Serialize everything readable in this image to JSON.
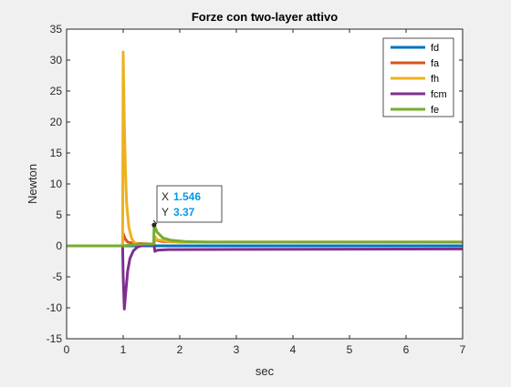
{
  "chart_data": {
    "type": "line",
    "title": "Forze con two-layer attivo",
    "xlabel": "sec",
    "ylabel": "Newton",
    "xlim": [
      0,
      7
    ],
    "ylim": [
      -15,
      35
    ],
    "x_ticks": [
      0,
      1,
      2,
      3,
      4,
      5,
      6,
      7
    ],
    "y_ticks": [
      -15,
      -10,
      -5,
      0,
      5,
      10,
      15,
      20,
      25,
      30,
      35
    ],
    "grid": false,
    "legend_position": "top-right",
    "series": [
      {
        "name": "fd",
        "color": "#0072bd",
        "points": [
          [
            0,
            0
          ],
          [
            7,
            0
          ]
        ]
      },
      {
        "name": "fa",
        "color": "#d95319",
        "points": [
          [
            0,
            0
          ],
          [
            0.99,
            0
          ],
          [
            1.0,
            2.0
          ],
          [
            1.03,
            1.2
          ],
          [
            1.08,
            0.6
          ],
          [
            1.2,
            0.4
          ],
          [
            1.5,
            0.3
          ],
          [
            1.546,
            0.3
          ],
          [
            1.56,
            1.2
          ],
          [
            1.6,
            0.9
          ],
          [
            1.7,
            0.7
          ],
          [
            2.0,
            0.6
          ],
          [
            3.0,
            0.6
          ],
          [
            7,
            0.6
          ]
        ]
      },
      {
        "name": "fh",
        "color": "#edb120",
        "points": [
          [
            0,
            0
          ],
          [
            0.99,
            0
          ],
          [
            1.0,
            31.3
          ],
          [
            1.02,
            20.0
          ],
          [
            1.04,
            12.0
          ],
          [
            1.06,
            7.0
          ],
          [
            1.1,
            3.0
          ],
          [
            1.15,
            1.2
          ],
          [
            1.2,
            0.5
          ],
          [
            1.3,
            0.2
          ],
          [
            1.546,
            0.2
          ],
          [
            1.56,
            1.5
          ],
          [
            1.6,
            1.0
          ],
          [
            1.8,
            0.7
          ],
          [
            2.2,
            0.6
          ],
          [
            7,
            0.6
          ]
        ]
      },
      {
        "name": "fcm",
        "color": "#7e2f8e",
        "points": [
          [
            0,
            0
          ],
          [
            0.99,
            0
          ],
          [
            1.0,
            -5.0
          ],
          [
            1.02,
            -10.2
          ],
          [
            1.05,
            -7.0
          ],
          [
            1.08,
            -4.0
          ],
          [
            1.12,
            -2.0
          ],
          [
            1.18,
            -0.8
          ],
          [
            1.25,
            -0.2
          ],
          [
            1.35,
            0.1
          ],
          [
            1.546,
            0.2
          ],
          [
            1.56,
            -0.9
          ],
          [
            1.6,
            -0.7
          ],
          [
            1.8,
            -0.6
          ],
          [
            7,
            -0.5
          ]
        ]
      },
      {
        "name": "fe",
        "color": "#77ac30",
        "points": [
          [
            0,
            0
          ],
          [
            1.0,
            0
          ],
          [
            1.1,
            0.1
          ],
          [
            1.3,
            0.25
          ],
          [
            1.54,
            0.3
          ],
          [
            1.546,
            3.37
          ],
          [
            1.6,
            2.2
          ],
          [
            1.7,
            1.3
          ],
          [
            1.85,
            0.9
          ],
          [
            2.1,
            0.7
          ],
          [
            2.5,
            0.6
          ],
          [
            7,
            0.6
          ]
        ]
      }
    ],
    "datatip": {
      "x_label": "X",
      "x_value": "1.546",
      "y_label": "Y",
      "y_value": "3.37",
      "x": 1.546,
      "y": 3.37
    }
  }
}
